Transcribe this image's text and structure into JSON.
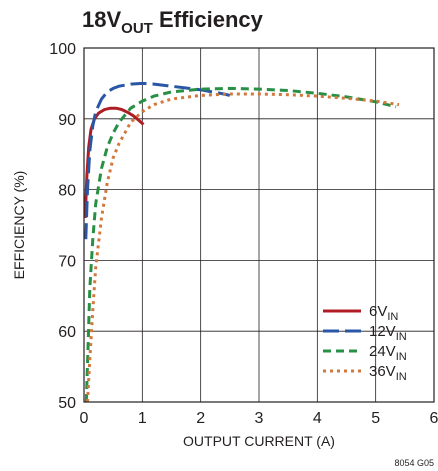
{
  "chart_data": {
    "type": "line",
    "title": {
      "main": "18V",
      "sub": "OUT",
      "rest": " Efficiency"
    },
    "xlabel": "OUTPUT CURRENT (A)",
    "ylabel": "EFFICIENCY (%)",
    "xlim": [
      0,
      6
    ],
    "ylim": [
      50,
      100
    ],
    "xticks": [
      0,
      1,
      2,
      3,
      4,
      5,
      6
    ],
    "yticks": [
      50,
      60,
      70,
      80,
      90,
      100
    ],
    "grid": true,
    "legend_position": "bottom-right",
    "figure_code": "8054 G05",
    "series": [
      {
        "name": "6V",
        "name_sub": "IN",
        "color": "#b01c24",
        "dash": "solid",
        "x": [
          0.02,
          0.05,
          0.08,
          0.12,
          0.18,
          0.25,
          0.35,
          0.45,
          0.55,
          0.65,
          0.75,
          0.85,
          0.95,
          1.02
        ],
        "y": [
          76,
          82,
          86,
          88.5,
          90,
          90.8,
          91.3,
          91.5,
          91.5,
          91.3,
          90.9,
          90.4,
          89.7,
          89.2
        ]
      },
      {
        "name": "12V",
        "name_sub": "IN",
        "color": "#2a56a6",
        "dash": "long-dash",
        "x": [
          0.03,
          0.06,
          0.1,
          0.15,
          0.2,
          0.3,
          0.4,
          0.5,
          0.6,
          0.8,
          1.0,
          1.2,
          1.5,
          1.8,
          2.0,
          2.2,
          2.4,
          2.5
        ],
        "y": [
          73,
          80,
          85.5,
          89,
          91,
          92.8,
          93.8,
          94.3,
          94.6,
          94.9,
          95,
          94.9,
          94.6,
          94.3,
          94.1,
          93.8,
          93.5,
          93.3
        ]
      },
      {
        "name": "24V",
        "name_sub": "IN",
        "color": "#279045",
        "dash": "dash",
        "x": [
          0.04,
          0.07,
          0.1,
          0.15,
          0.2,
          0.3,
          0.4,
          0.5,
          0.6,
          0.8,
          1.0,
          1.2,
          1.5,
          2.0,
          2.5,
          3.0,
          3.5,
          4.0,
          4.5,
          5.0,
          5.35
        ],
        "y": [
          50,
          58,
          66,
          73,
          78,
          83,
          86,
          88,
          89.5,
          91.5,
          92.5,
          93.2,
          93.8,
          94.2,
          94.3,
          94.2,
          94,
          93.6,
          93.1,
          92.4,
          91.7
        ]
      },
      {
        "name": "36V",
        "name_sub": "IN",
        "color": "#d2783c",
        "dash": "dot",
        "x": [
          0.06,
          0.1,
          0.15,
          0.2,
          0.3,
          0.4,
          0.5,
          0.6,
          0.8,
          1.0,
          1.2,
          1.5,
          2.0,
          2.5,
          3.0,
          3.5,
          4.0,
          4.5,
          5.0,
          5.4
        ],
        "y": [
          50,
          56,
          63,
          69,
          76,
          81,
          84.5,
          86.5,
          89.5,
          91,
          92,
          92.8,
          93.3,
          93.5,
          93.5,
          93.4,
          93.2,
          92.9,
          92.5,
          92
        ]
      }
    ]
  }
}
